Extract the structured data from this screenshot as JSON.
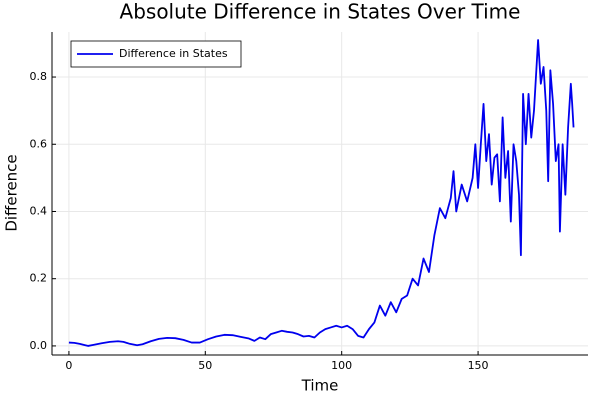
{
  "chart_data": {
    "type": "line",
    "title": "Absolute Difference in States Over Time",
    "xlabel": "Time",
    "ylabel": "Difference",
    "x": [
      0,
      2,
      4,
      6,
      7,
      9,
      12,
      15,
      18,
      20,
      22,
      25,
      27,
      30,
      33,
      36,
      39,
      42,
      45,
      48,
      51,
      54,
      57,
      60,
      63,
      66,
      68,
      70,
      72,
      74,
      76,
      78,
      80,
      82,
      84,
      86,
      88,
      90,
      92,
      94,
      96,
      98,
      100,
      102,
      104,
      106,
      108,
      110,
      112,
      114,
      116,
      118,
      120,
      122,
      124,
      126,
      128,
      130,
      132,
      134,
      136,
      138,
      140,
      141,
      142,
      144,
      146,
      148,
      149,
      150,
      151,
      152,
      153,
      154,
      155,
      156,
      157,
      158,
      159,
      160,
      161,
      162,
      163,
      164,
      165,
      165.7,
      166.5,
      167.5,
      168.5,
      169.5,
      170.5,
      172,
      173,
      174,
      175,
      175.7,
      176.5,
      177.5,
      178.5,
      179.5,
      180,
      181,
      182,
      183,
      184,
      184.5,
      185
    ],
    "series": [
      {
        "name": "Difference in States",
        "color": "#0000ee",
        "values": [
          0.01,
          0.009,
          0.006,
          0.002,
          0.0,
          0.003,
          0.008,
          0.012,
          0.014,
          0.012,
          0.007,
          0.002,
          0.005,
          0.014,
          0.021,
          0.024,
          0.023,
          0.018,
          0.01,
          0.01,
          0.02,
          0.028,
          0.033,
          0.032,
          0.027,
          0.022,
          0.015,
          0.025,
          0.02,
          0.035,
          0.04,
          0.045,
          0.042,
          0.04,
          0.035,
          0.028,
          0.03,
          0.025,
          0.04,
          0.05,
          0.055,
          0.06,
          0.055,
          0.06,
          0.05,
          0.03,
          0.025,
          0.05,
          0.07,
          0.12,
          0.09,
          0.13,
          0.1,
          0.14,
          0.15,
          0.2,
          0.18,
          0.26,
          0.22,
          0.33,
          0.41,
          0.38,
          0.44,
          0.52,
          0.4,
          0.48,
          0.43,
          0.5,
          0.6,
          0.47,
          0.6,
          0.72,
          0.55,
          0.63,
          0.48,
          0.56,
          0.57,
          0.43,
          0.68,
          0.5,
          0.58,
          0.37,
          0.6,
          0.55,
          0.45,
          0.27,
          0.75,
          0.6,
          0.75,
          0.62,
          0.7,
          0.91,
          0.78,
          0.83,
          0.7,
          0.49,
          0.82,
          0.72,
          0.55,
          0.6,
          0.34,
          0.6,
          0.45,
          0.65,
          0.78,
          0.72,
          0.65
        ]
      }
    ],
    "xlim": [
      -6.2,
      190.3
    ],
    "xticks": [
      0,
      50,
      100,
      150
    ],
    "ylim": [
      -0.027,
      0.934
    ],
    "yticks": [
      {
        "value": 0,
        "label": "0.0"
      },
      0.2,
      0.4,
      0.6,
      0.8
    ],
    "grid": true,
    "legend": "top-left"
  }
}
